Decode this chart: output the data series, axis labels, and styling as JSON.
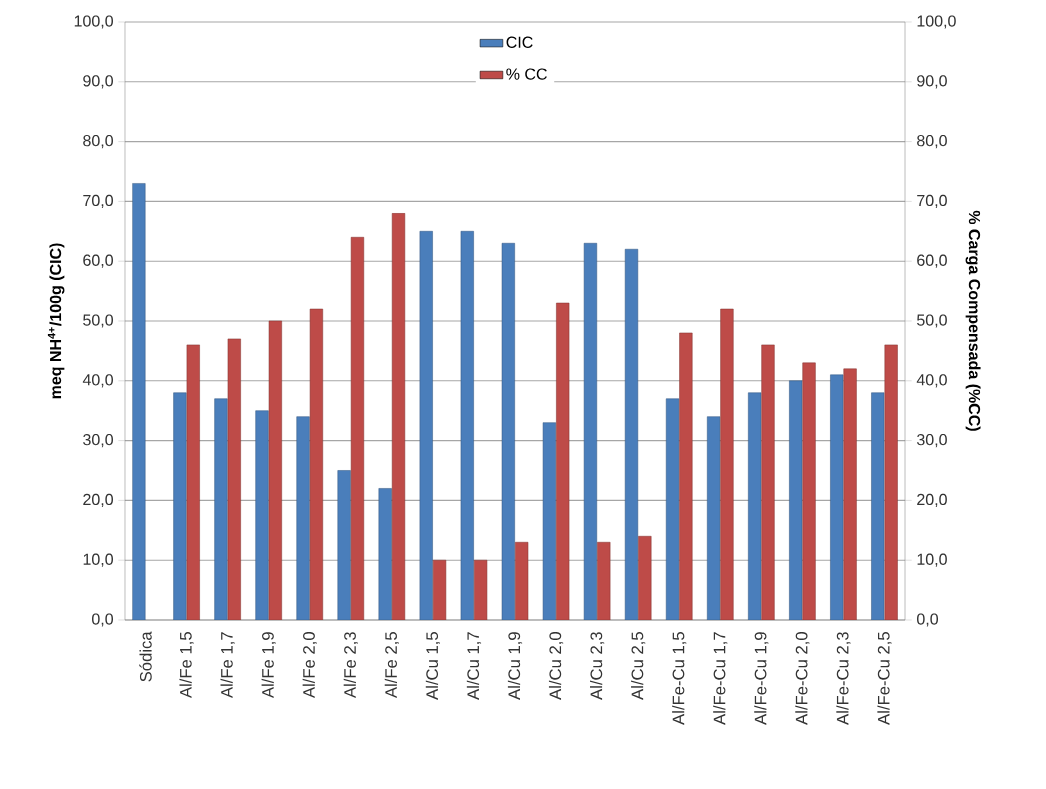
{
  "chart_data": {
    "type": "bar",
    "ylabel": "meq NH$^{4+}$/100g (CIC)",
    "y2label": "% Carga Compensada (%CC)",
    "categories": [
      "Sódica",
      "Al/Fe 1,5",
      "Al/Fe 1,7",
      "Al/Fe 1,9",
      "Al/Fe 2,0",
      "Al/Fe 2,3",
      "Al/Fe 2,5",
      "Al/Cu 1,5",
      "Al/Cu 1,7",
      "Al/Cu 1,9",
      "Al/Cu 2,0",
      "Al/Cu 2,3",
      "Al/Cu 2,5",
      "Al/Fe-Cu 1,5",
      "Al/Fe-Cu 1,7",
      "Al/Fe-Cu 1,9",
      "Al/Fe-Cu 2,0",
      "Al/Fe-Cu 2,3",
      "Al/Fe-Cu 2,5"
    ],
    "series": [
      {
        "name": "CIC",
        "color": "#4a7ebb",
        "values": [
          73,
          38,
          37,
          35,
          34,
          25,
          22,
          65,
          65,
          63,
          33,
          63,
          62,
          37,
          34,
          38,
          40,
          41,
          38
        ]
      },
      {
        "name": "% CC",
        "color": "#be4b48",
        "axis": "y2",
        "values": [
          null,
          46,
          47,
          50,
          52,
          64,
          68,
          10,
          10,
          13,
          53,
          13,
          14,
          48,
          52,
          46,
          43,
          42,
          46
        ]
      }
    ],
    "ylim": [
      0,
      100
    ],
    "yticks": [
      {
        "value": 0,
        "label": "0,0"
      },
      {
        "value": 10,
        "label": "10,0"
      },
      {
        "value": 20,
        "label": "20,0"
      },
      {
        "value": 30,
        "label": "30,0"
      },
      {
        "value": 40,
        "label": "40,0"
      },
      {
        "value": 50,
        "label": "50,0"
      },
      {
        "value": 60,
        "label": "60,0"
      },
      {
        "value": 70,
        "label": "70,0"
      },
      {
        "value": 80,
        "label": "80,0"
      },
      {
        "value": 90,
        "label": "90,0"
      },
      {
        "value": 100,
        "label": "100,0"
      }
    ],
    "y2lim": [
      0,
      100
    ],
    "y2ticks": [
      {
        "value": 0,
        "label": "0,0"
      },
      {
        "value": 10,
        "label": "10,0"
      },
      {
        "value": 20,
        "label": "20,0"
      },
      {
        "value": 30,
        "label": "30,0"
      },
      {
        "value": 40,
        "label": "40,0"
      },
      {
        "value": 50,
        "label": "50,0"
      },
      {
        "value": 60,
        "label": "60,0"
      },
      {
        "value": 70,
        "label": "70,0"
      },
      {
        "value": 80,
        "label": "80,0"
      },
      {
        "value": 90,
        "label": "90,0"
      },
      {
        "value": 100,
        "label": "100,0"
      }
    ],
    "grid": "y",
    "legend": "top"
  }
}
